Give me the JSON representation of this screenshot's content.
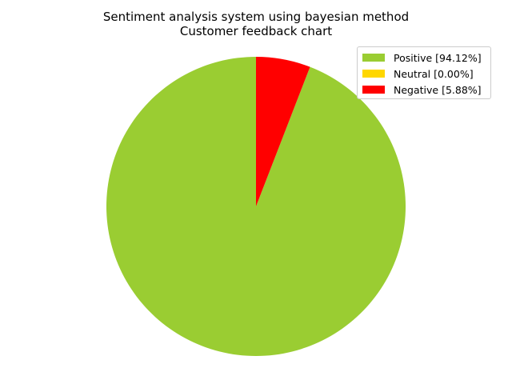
{
  "chart_data": {
    "type": "pie",
    "title": "Sentiment analysis system using bayesian method",
    "subtitle": "Customer feedback chart",
    "series": [
      {
        "name": "Positive",
        "value": 94.12,
        "color": "#9acd32",
        "legend_label": "Positive [94.12%]"
      },
      {
        "name": "Neutral",
        "value": 0.0,
        "color": "#ffd700",
        "legend_label": "Neutral [0.00%]"
      },
      {
        "name": "Negative",
        "value": 5.88,
        "color": "#ff0000",
        "legend_label": "Negative [5.88%]"
      }
    ],
    "start_angle": "top",
    "direction": "counterclockwise",
    "legend_position": "top-right"
  }
}
